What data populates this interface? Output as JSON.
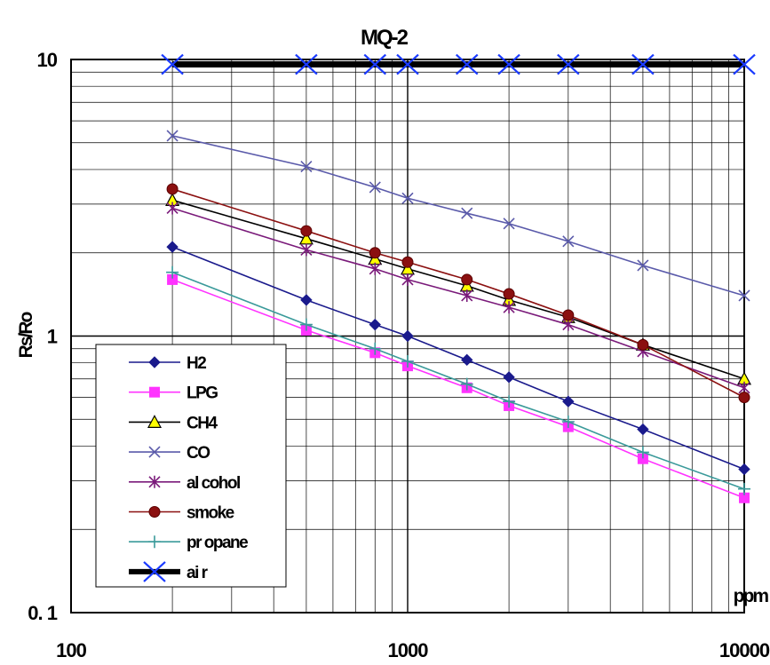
{
  "chart_data": {
    "type": "line",
    "title": "MQ-2",
    "ylabel": "Rs/Ro",
    "xlabel": "ppm",
    "xscale": "log",
    "yscale": "log",
    "xlim": [
      100,
      10000
    ],
    "ylim": [
      0.1,
      10
    ],
    "x_tick_labels": [
      "100",
      "1000",
      "10000"
    ],
    "y_tick_labels": [
      "10",
      "1",
      "0. 1"
    ],
    "grid": true,
    "legend_position": "bottom-left",
    "x": [
      200,
      500,
      800,
      1000,
      1500,
      2000,
      3000,
      5000,
      10000
    ],
    "series": [
      {
        "name": "H2",
        "color": "#1a1a8c",
        "marker": "diamond",
        "values": [
          2.1,
          1.35,
          1.1,
          1.0,
          0.82,
          0.71,
          0.58,
          0.46,
          0.33
        ]
      },
      {
        "name": "LPG",
        "color": "#ff33ff",
        "marker": "square",
        "values": [
          1.6,
          1.05,
          0.87,
          0.78,
          0.65,
          0.56,
          0.47,
          0.36,
          0.26
        ]
      },
      {
        "name": "CH4",
        "color": "#000000",
        "marker": "triangle",
        "marker_fill": "#ffff00",
        "values": [
          3.1,
          2.25,
          1.9,
          1.75,
          1.52,
          1.35,
          1.17,
          0.93,
          0.7
        ]
      },
      {
        "name": "CO",
        "color": "#5a5aaa",
        "marker": "x",
        "values": [
          5.3,
          4.1,
          3.45,
          3.15,
          2.78,
          2.55,
          2.2,
          1.8,
          1.4
        ]
      },
      {
        "name": "alcohol",
        "color": "#7a1a7a",
        "marker": "asterisk",
        "values": [
          2.9,
          2.05,
          1.75,
          1.6,
          1.4,
          1.27,
          1.1,
          0.88,
          0.65
        ]
      },
      {
        "name": "smoke",
        "color": "#8b1010",
        "marker": "circle",
        "values": [
          3.4,
          2.4,
          2.0,
          1.85,
          1.6,
          1.42,
          1.19,
          0.93,
          0.6
        ]
      },
      {
        "name": "propane",
        "color": "#3a9a9a",
        "marker": "plus",
        "values": [
          1.7,
          1.1,
          0.9,
          0.81,
          0.67,
          0.58,
          0.49,
          0.38,
          0.28
        ]
      },
      {
        "name": "air",
        "color": "#000000",
        "marker": "x-blue",
        "marker_color": "#1a3aff",
        "line_weight": "heavy",
        "values": [
          9.6,
          9.6,
          9.6,
          9.6,
          9.6,
          9.6,
          9.6,
          9.6,
          9.6
        ]
      }
    ],
    "legend_labels": [
      "H2",
      "LPG",
      "CH4",
      "CO",
      "al cohol",
      "smoke",
      "pr opane",
      "ai r"
    ]
  }
}
